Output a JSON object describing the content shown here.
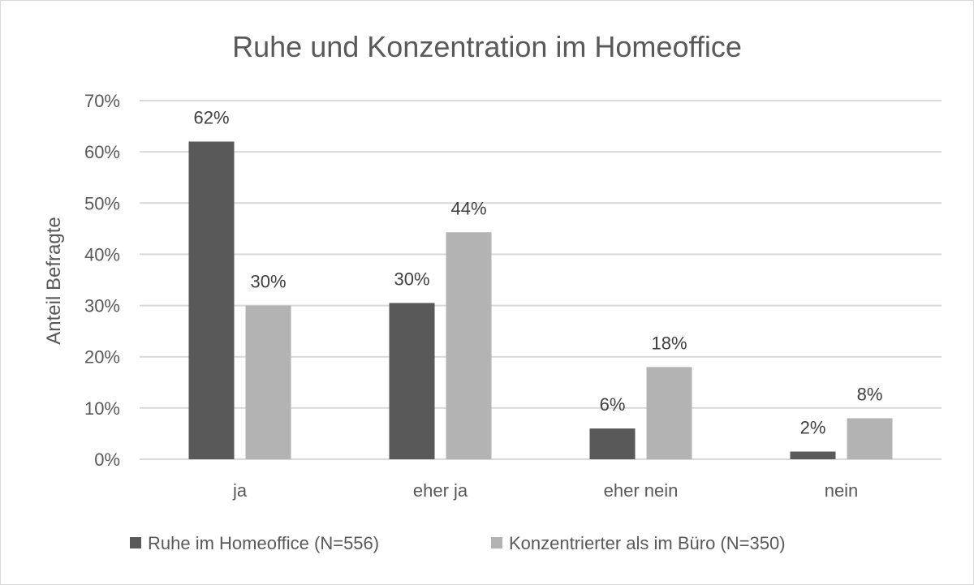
{
  "chart_data": {
    "type": "bar",
    "title": "Ruhe und Konzentration im Homeoffice",
    "ylabel": "Anteil Befragte",
    "xlabel": "",
    "ylim": [
      0,
      70
    ],
    "yticks": [
      0,
      10,
      20,
      30,
      40,
      50,
      60,
      70
    ],
    "ytick_labels": [
      "0%",
      "10%",
      "20%",
      "30%",
      "40%",
      "50%",
      "60%",
      "70%"
    ],
    "categories": [
      "ja",
      "eher ja",
      "eher nein",
      "nein"
    ],
    "grid": true,
    "legend_position": "bottom",
    "series": [
      {
        "name": "Ruhe im Homeoffice (N=556)",
        "color": "#595959",
        "values": [
          62,
          30.5,
          6,
          1.5
        ],
        "labels": [
          "62%",
          "30%",
          "6%",
          "2%"
        ]
      },
      {
        "name": "Konzentrierter als im Büro (N=350)",
        "color": "#b3b3b3",
        "values": [
          30,
          44.3,
          18,
          8
        ],
        "labels": [
          "30%",
          "44%",
          "18%",
          "8%"
        ]
      }
    ]
  }
}
